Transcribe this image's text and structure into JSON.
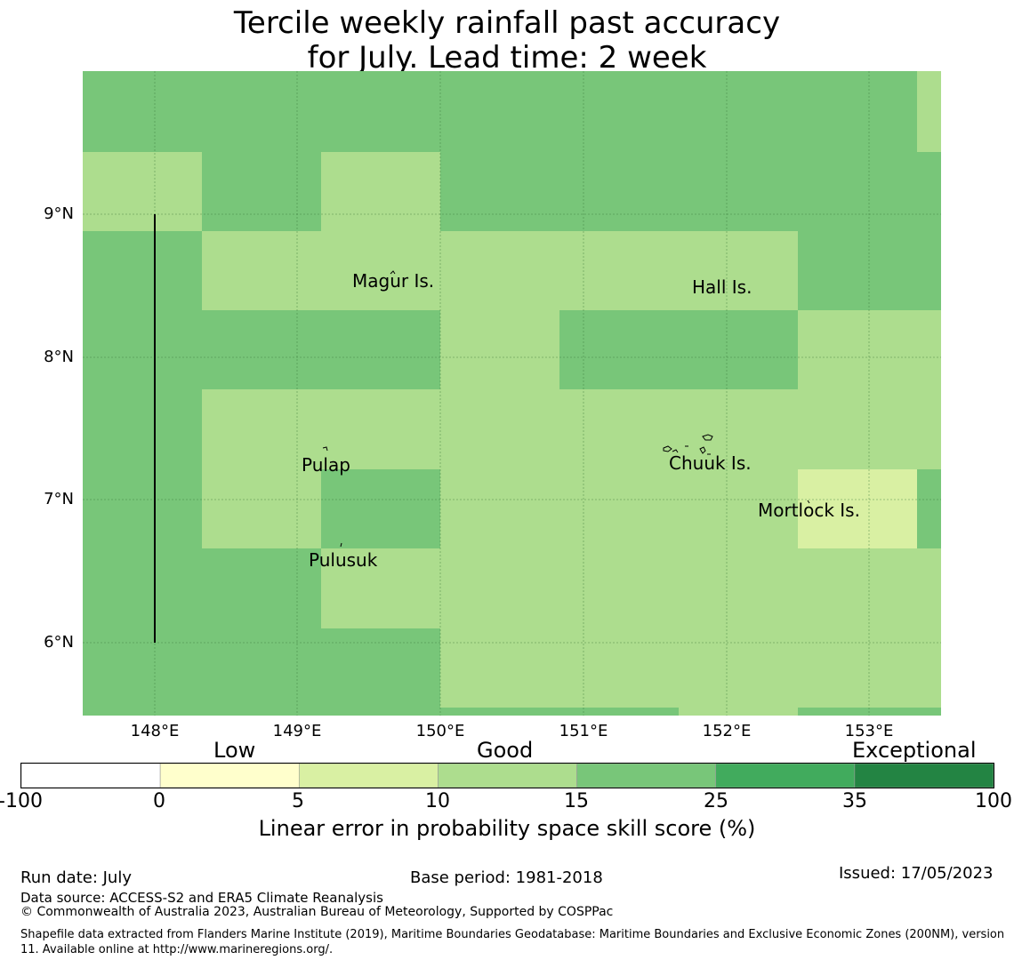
{
  "title": {
    "line1": "Tercile weekly rainfall past accuracy",
    "line2": "for July. Lead time: 2 week"
  },
  "map": {
    "lat_labels": [
      "9°N",
      "8°N",
      "7°N",
      "6°N"
    ],
    "lon_labels": [
      "148°E",
      "149°E",
      "150°E",
      "151°E",
      "152°E",
      "153°E"
    ],
    "places": [
      "Magur Is.",
      "Hall Is.",
      "Pulap",
      "Chuuk Is.",
      "Mortlock Is.",
      "Pulusuk"
    ]
  },
  "legend": {
    "categories": [
      "Low",
      "Good",
      "Exceptional"
    ],
    "ticks": [
      "-100",
      "0",
      "5",
      "10",
      "15",
      "25",
      "35",
      "100"
    ],
    "colors": [
      "#ffffff",
      "#ffffcc",
      "#d9f0a3",
      "#addd8e",
      "#78c679",
      "#41ab5d",
      "#238443"
    ],
    "label": "Linear error in probability space skill score (%)"
  },
  "footer": {
    "run_date": "Run date: July",
    "base_period": "Base period: 1981-2018",
    "issued": "Issued: 17/05/2023",
    "data_source": "Data source: ACCESS-S2 and ERA5 Climate Reanalysis",
    "copyright": "© Commonwealth of Australia 2023, Australian Bureau of Meteorology, Supported by COSPPac",
    "shapefile": "Shapefile data extracted from Flanders Marine Institute (2019), Maritime Boundaries Geodatabase: Maritime Boundaries and Exclusive Economic Zones (200NM), version 11. Available online at http://www.marineregions.org/."
  }
}
